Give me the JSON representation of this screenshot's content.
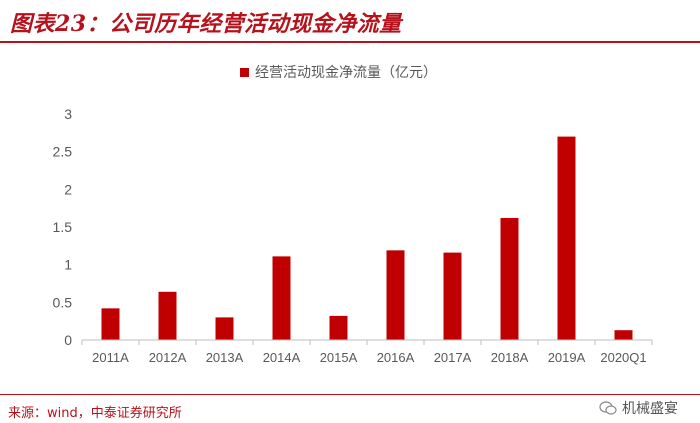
{
  "header": {
    "title": "图表23：公司历年经营活动现金净流量"
  },
  "chart_data": {
    "type": "bar",
    "categories": [
      "2011A",
      "2012A",
      "2013A",
      "2014A",
      "2015A",
      "2016A",
      "2017A",
      "2018A",
      "2019A",
      "2020Q1"
    ],
    "series": [
      {
        "name": "经营活动现金净流量（亿元）",
        "values": [
          0.42,
          0.64,
          0.3,
          1.11,
          0.32,
          1.19,
          1.16,
          1.62,
          2.7,
          0.13
        ]
      }
    ],
    "ylim": [
      0,
      3
    ],
    "yticks": [
      0,
      0.5,
      1,
      1.5,
      2,
      2.5,
      3
    ],
    "ytick_labels": [
      "0",
      "0.5",
      "1",
      "1.5",
      "2",
      "2.5",
      "3"
    ],
    "legend_position": "top-center",
    "grid": false,
    "bar_color": "#c00000"
  },
  "footer": {
    "source": "来源：wind，中泰证券研究所",
    "watermark": "机械盛宴"
  }
}
